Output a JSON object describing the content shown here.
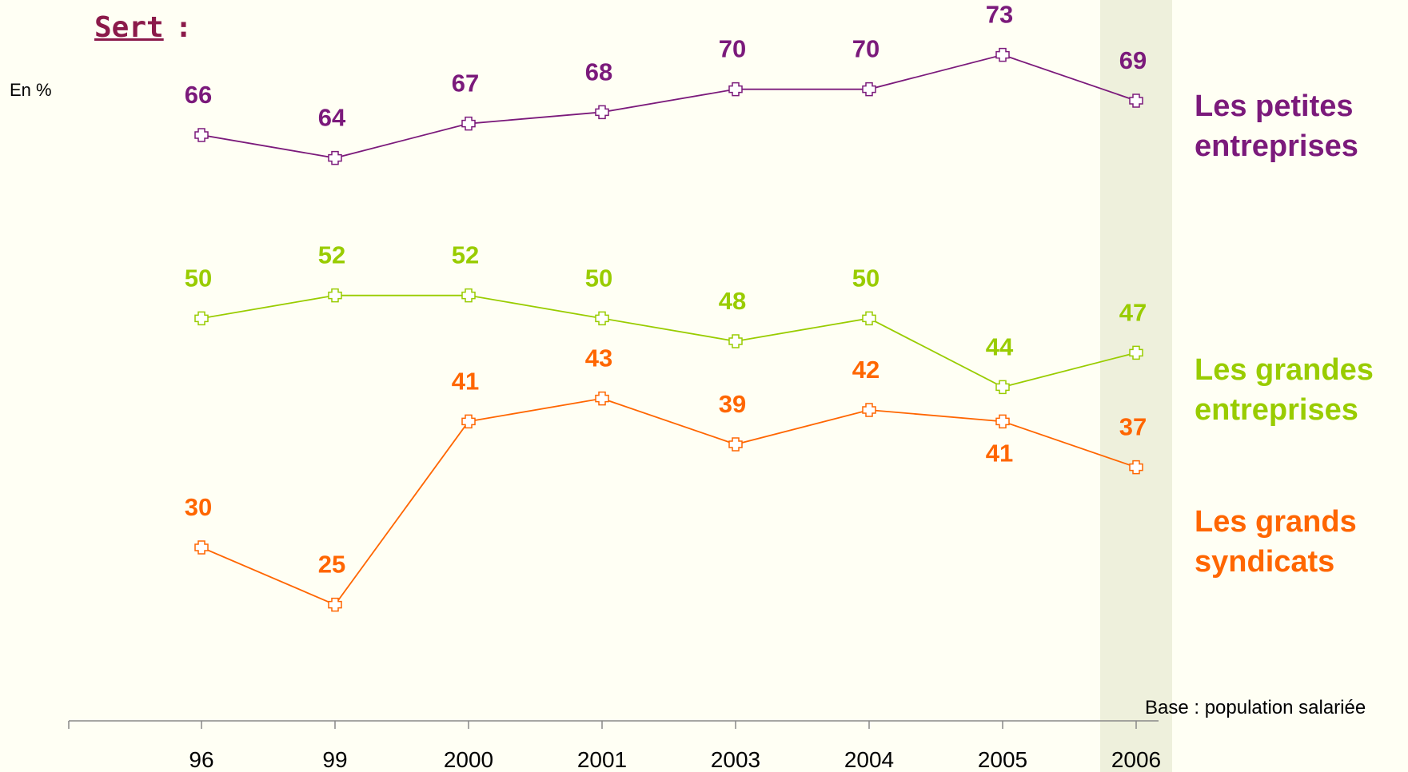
{
  "chart_data": {
    "type": "line",
    "title": "Sert :",
    "subtitle": "En %",
    "note": "Base : population salariée",
    "categories": [
      "96",
      "99",
      "2000",
      "2001",
      "2003",
      "2004",
      "2005",
      "2006"
    ],
    "highlight_category": "2006",
    "ylim": [
      15,
      75
    ],
    "series": [
      {
        "name": "Les petites entreprises",
        "color": "#7B1A7B",
        "values": [
          66,
          64,
          67,
          68,
          70,
          70,
          73,
          69
        ]
      },
      {
        "name": "Les grandes entreprises",
        "color": "#99CC00",
        "values": [
          50,
          52,
          52,
          50,
          48,
          50,
          44,
          47
        ]
      },
      {
        "name": "Les grands syndicats",
        "color": "#FF6600",
        "values": [
          30,
          25,
          41,
          43,
          39,
          42,
          41,
          37
        ]
      }
    ]
  }
}
